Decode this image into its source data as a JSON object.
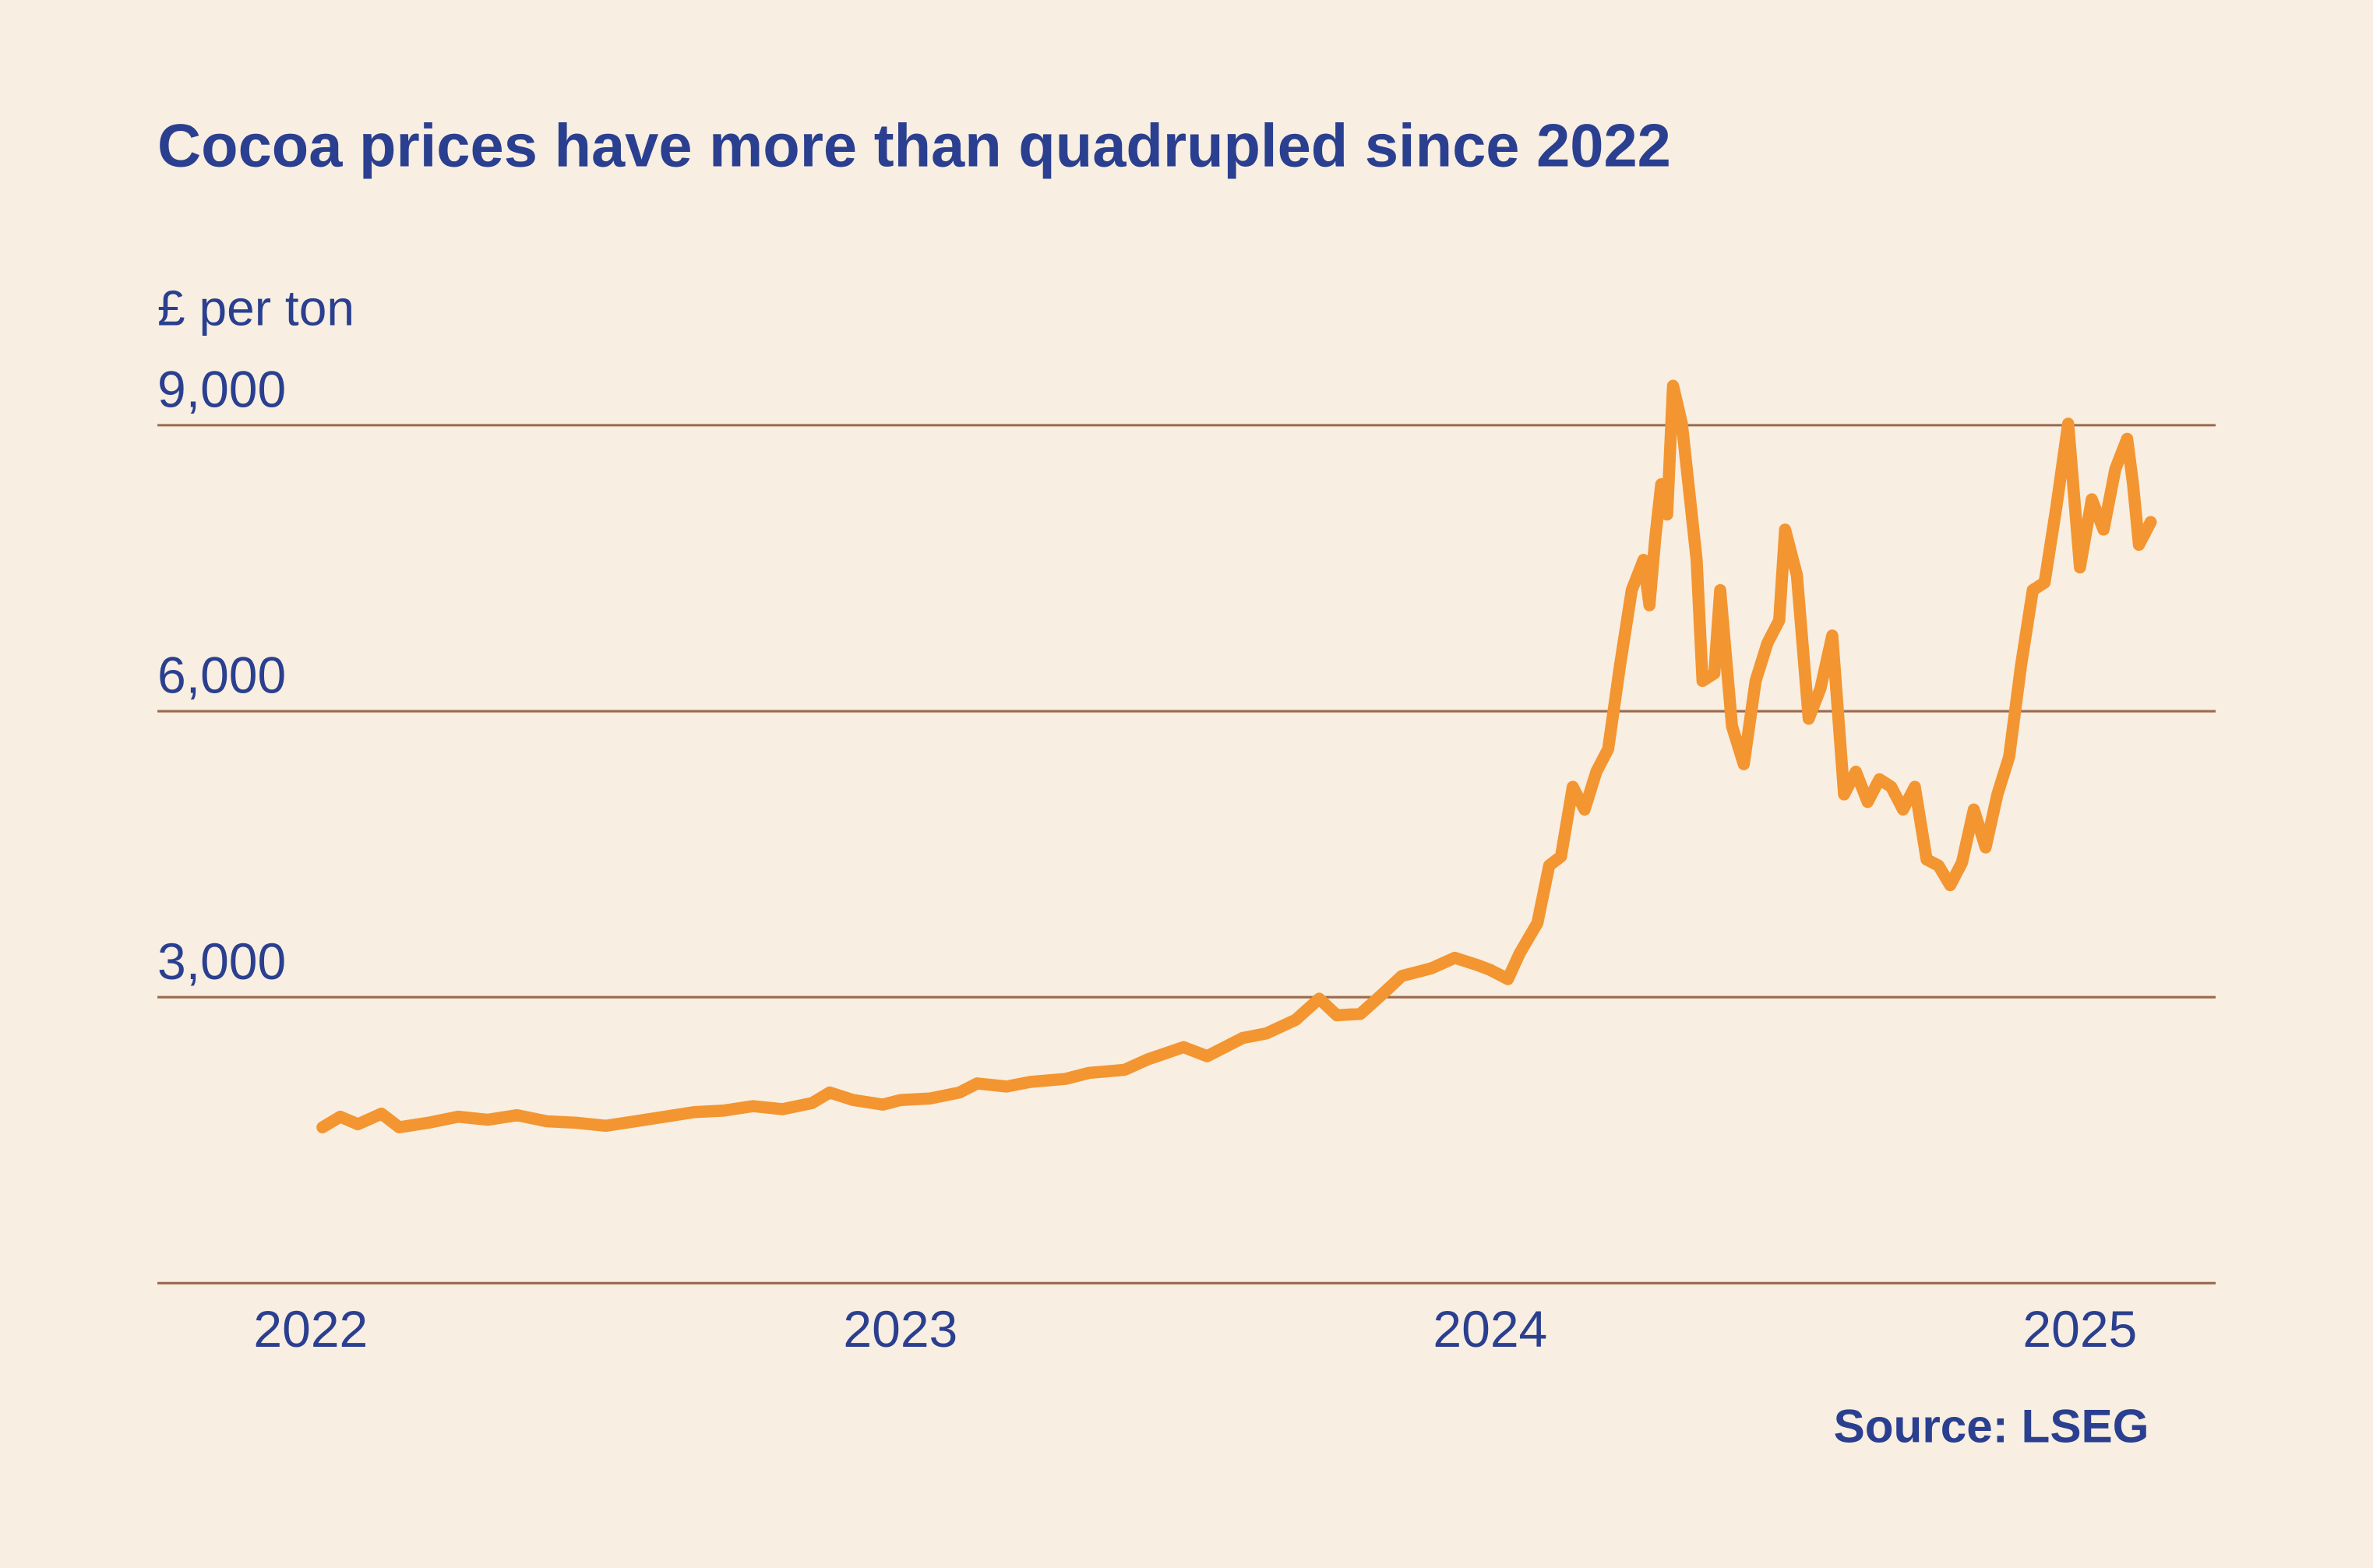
{
  "chart_data": {
    "type": "line",
    "title": "Cocoa prices have more than quadrupled since 2022",
    "y_label": "£ per ton",
    "source": "Source: LSEG",
    "color": "#f39530",
    "grid": true,
    "xlim": [
      2021.74,
      2025.23
    ],
    "xticks": [
      2022,
      2023,
      2024,
      2025
    ],
    "ylim": [
      0,
      9000
    ],
    "yticks": [
      {
        "value": 3000,
        "label": "3,000"
      },
      {
        "value": 6000,
        "label": "6,000"
      },
      {
        "value": 9000,
        "label": "9,000"
      }
    ],
    "x": [
      2022.02,
      2022.05,
      2022.08,
      2022.12,
      2022.15,
      2022.2,
      2022.25,
      2022.3,
      2022.35,
      2022.4,
      2022.45,
      2022.5,
      2022.55,
      2022.6,
      2022.65,
      2022.7,
      2022.75,
      2022.8,
      2022.85,
      2022.88,
      2022.92,
      2022.97,
      2023.0,
      2023.05,
      2023.1,
      2023.13,
      2023.18,
      2023.22,
      2023.28,
      2023.32,
      2023.38,
      2023.42,
      2023.48,
      2023.52,
      2023.58,
      2023.62,
      2023.67,
      2023.71,
      2023.74,
      2023.78,
      2023.82,
      2023.85,
      2023.9,
      2023.94,
      2023.98,
      2024.0,
      2024.03,
      2024.05,
      2024.08,
      2024.1,
      2024.12,
      2024.14,
      2024.16,
      2024.18,
      2024.2,
      2024.22,
      2024.24,
      2024.26,
      2024.27,
      2024.28,
      2024.29,
      2024.3,
      2024.31,
      2024.325,
      2024.35,
      2024.36,
      2024.38,
      2024.39,
      2024.41,
      2024.43,
      2024.45,
      2024.47,
      2024.49,
      2024.5,
      2024.52,
      2024.54,
      2024.56,
      2024.58,
      2024.6,
      2024.62,
      2024.64,
      2024.66,
      2024.68,
      2024.7,
      2024.72,
      2024.74,
      2024.76,
      2024.78,
      2024.8,
      2024.82,
      2024.84,
      2024.86,
      2024.88,
      2024.9,
      2024.92,
      2024.94,
      2024.96,
      2024.98,
      2025.0,
      2025.02,
      2025.04,
      2025.06,
      2025.08,
      2025.09,
      2025.1,
      2025.12
    ],
    "values": [
      1635,
      1746,
      1667,
      1778,
      1635,
      1683,
      1746,
      1714,
      1762,
      1698,
      1683,
      1651,
      1698,
      1746,
      1794,
      1810,
      1857,
      1825,
      1889,
      2000,
      1921,
      1873,
      1921,
      1937,
      2000,
      2095,
      2063,
      2111,
      2143,
      2206,
      2238,
      2349,
      2476,
      2381,
      2571,
      2619,
      2762,
      2984,
      2810,
      2825,
      3048,
      3222,
      3302,
      3413,
      3333,
      3286,
      3190,
      3460,
      3778,
      4381,
      4476,
      5206,
      4968,
      5365,
      5603,
      6476,
      7270,
      7587,
      7111,
      7825,
      8381,
      8063,
      9413,
      9016,
      7587,
      6317,
      6397,
      7270,
      5841,
      5444,
      6317,
      6714,
      6952,
      7905,
      7428,
      5921,
      6238,
      6793,
      5127,
      5365,
      5048,
      5286,
      5206,
      4968,
      5206,
      4444,
      4381,
      4175,
      4413,
      4968,
      4571,
      5127,
      5524,
      6476,
      7270,
      7349,
      8143,
      9016,
      7508,
      8222,
      7905,
      8540,
      8857,
      8381,
      7746,
      7984
    ]
  }
}
